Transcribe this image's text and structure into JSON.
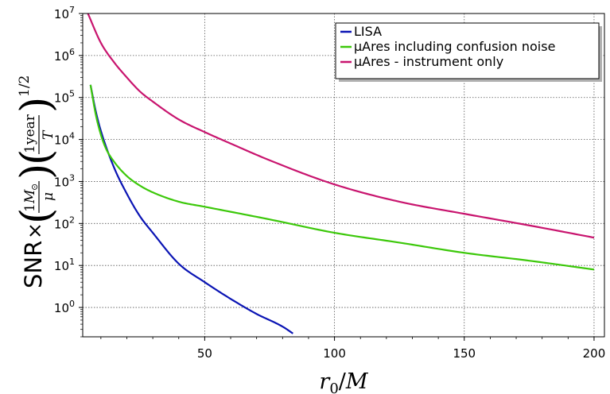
{
  "chart_data": {
    "type": "line",
    "xlabel": "r_0/M",
    "ylabel_tex": "SNR × (1 M_⊙ / μ)(1 year / T)^{1/2}",
    "ylabel": {
      "snr": "SNR",
      "times": "×",
      "one_msun_num": "1",
      "msun": "M",
      "odot": "⊙",
      "mu": "μ",
      "one_year_num": "1",
      "year_word": "year",
      "T": "T",
      "exponent": "1/2"
    },
    "xlabel_parts": {
      "r": "r",
      "sub": "0",
      "slash": "/",
      "M": "M"
    },
    "yscale": "log",
    "xlim": [
      3,
      204
    ],
    "ylim": [
      0.2,
      10000000
    ],
    "x_ticks": [
      {
        "value": 50,
        "label": "50"
      },
      {
        "value": 100,
        "label": "100"
      },
      {
        "value": 150,
        "label": "150"
      },
      {
        "value": 200,
        "label": "200"
      }
    ],
    "y_ticks": [
      {
        "value": 1,
        "base": "10",
        "exp": "0"
      },
      {
        "value": 10,
        "base": "10",
        "exp": "1"
      },
      {
        "value": 100,
        "base": "10",
        "exp": "2"
      },
      {
        "value": 1000,
        "base": "10",
        "exp": "3"
      },
      {
        "value": 10000,
        "base": "10",
        "exp": "4"
      },
      {
        "value": 100000,
        "base": "10",
        "exp": "5"
      },
      {
        "value": 1000000,
        "base": "10",
        "exp": "6"
      },
      {
        "value": 10000000,
        "base": "10",
        "exp": "7"
      }
    ],
    "grid": true,
    "legend_position": "top-right",
    "series": [
      {
        "name": "LISA",
        "color": "#0a14b4",
        "x": [
          6,
          8,
          10,
          15,
          20,
          25,
          30,
          40,
          50,
          60,
          70,
          80,
          84
        ],
        "y": [
          200000,
          48000,
          16000,
          2200,
          510,
          150,
          60,
          11,
          4,
          1.6,
          0.7,
          0.35,
          0.24
        ]
      },
      {
        "name": "μAres including confusion noise",
        "color": "#3cc80a",
        "x": [
          6,
          8,
          10,
          12,
          15,
          20,
          25,
          30,
          40,
          50,
          75,
          100,
          125,
          150,
          175,
          200
        ],
        "y": [
          200000,
          40000,
          13000,
          6000,
          3000,
          1350,
          800,
          550,
          330,
          250,
          125,
          60,
          35,
          20,
          13,
          8
        ]
      },
      {
        "name": "μAres - instrument only",
        "color": "#c8146e",
        "x": [
          5,
          10,
          15,
          20,
          25,
          30,
          40,
          50,
          60,
          75,
          100,
          125,
          150,
          175,
          200
        ],
        "y": [
          10000000,
          2000000,
          700000,
          300000,
          140000,
          80000,
          30000,
          15000,
          8000,
          3200,
          850,
          330,
          170,
          90,
          46
        ]
      }
    ]
  }
}
